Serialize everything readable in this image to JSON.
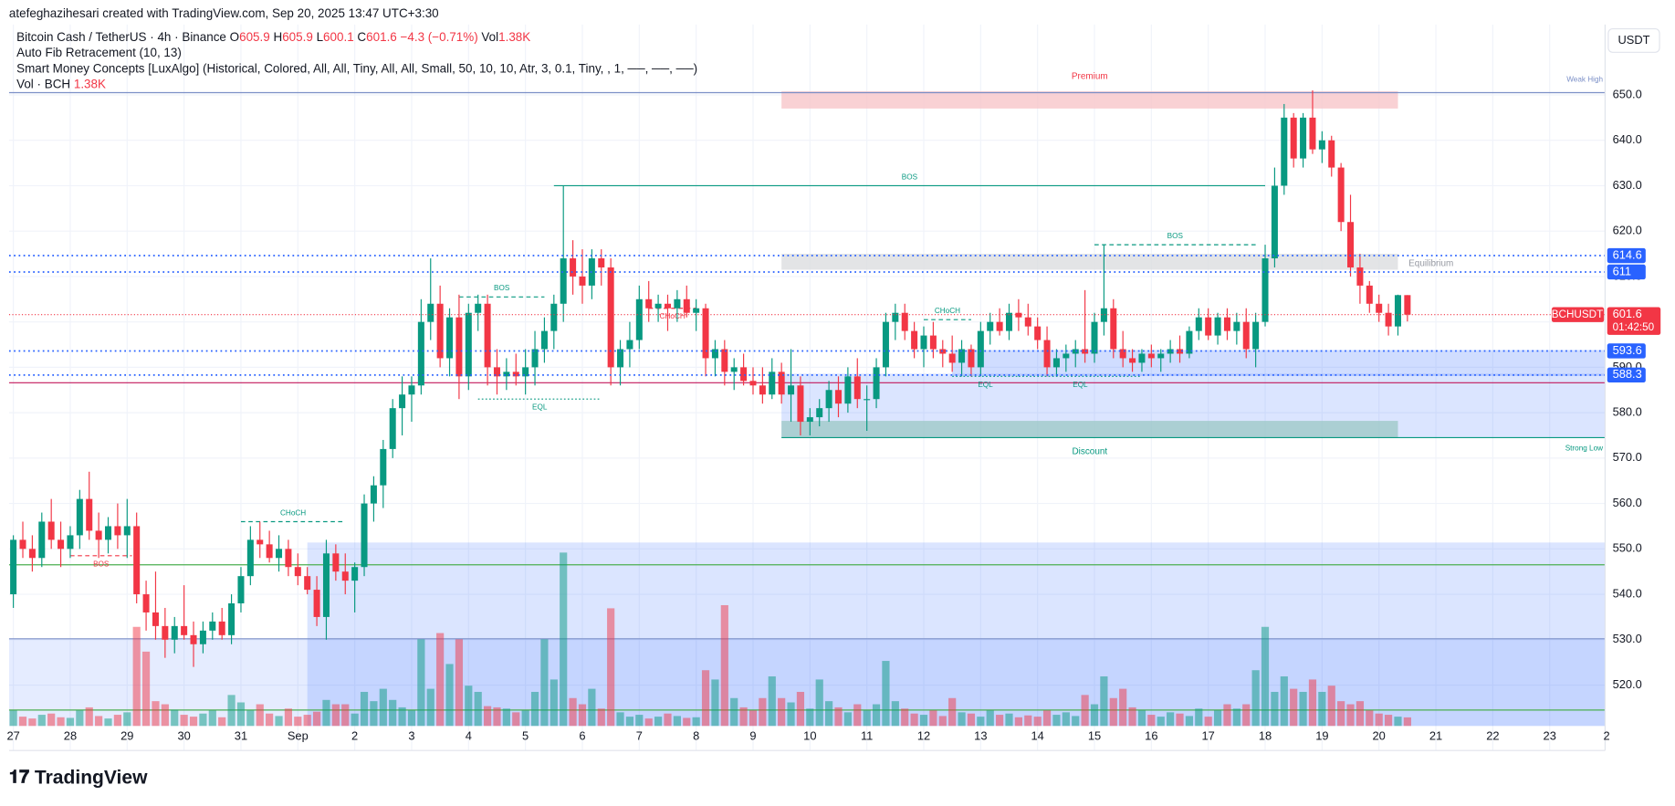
{
  "header": {
    "credit": "atefeghazihesari created with TradingView.com, Sep 20, 2025 13:47 UTC+3:30",
    "symbol": "Bitcoin Cash / TetherUS · 4h · Binance",
    "ohlc_labels": [
      "O",
      "H",
      "L",
      "C"
    ],
    "ohlc": [
      605.9,
      605.9,
      600.1,
      601.6
    ],
    "change": "−4.3 (−0.71%)",
    "vol_label": "Vol",
    "vol": "1.38K",
    "indicators": [
      "Auto Fib Retracement (10, 13)",
      "Smart Money Concepts [LuxAlgo] (Historical, Colored, All, All, Tiny, All, All, Small, 50, 10, 10, Atr, 3, 0.1, Tiny, , 1, ──, ──, ──)"
    ],
    "vol_indicator": "Vol · BCH",
    "currency": "USDT",
    "ticker": "BCHUSDT",
    "countdown": "01:42:50",
    "logo": "TradingView"
  },
  "chart_data": {
    "type": "candlestick",
    "up_color": "#089981",
    "down_color": "#f23645",
    "categories": [
      "27",
      "28",
      "29",
      "30",
      "31",
      "Sep",
      "2",
      "3",
      "4",
      "5",
      "6",
      "7",
      "8",
      "9",
      "10",
      "11",
      "12",
      "13",
      "14",
      "15",
      "16",
      "17",
      "18",
      "19",
      "20",
      "21",
      "22",
      "23",
      "2"
    ],
    "ylim": [
      511,
      665.5
    ],
    "yticks": [
      {
        "value": 520,
        "label": "520.0"
      },
      {
        "value": 530,
        "label": "530.0"
      },
      {
        "value": 540,
        "label": "540.0"
      },
      {
        "value": 550,
        "label": "550.0"
      },
      {
        "value": 560,
        "label": "560.0"
      },
      {
        "value": 570,
        "label": "570.0"
      },
      {
        "value": 580,
        "label": "580.0"
      },
      {
        "value": 590,
        "label": "590.0"
      },
      {
        "value": 600,
        "label": "600.0"
      },
      {
        "value": 610,
        "label": "610.0"
      },
      {
        "value": 620,
        "label": "620.0"
      },
      {
        "value": 630,
        "label": "630.0"
      },
      {
        "value": 640,
        "label": "640.0"
      },
      {
        "value": 650,
        "label": "650.0"
      }
    ],
    "grid": true,
    "candles": [
      [
        540,
        553,
        537,
        552
      ],
      [
        552,
        556,
        548,
        550
      ],
      [
        550,
        553,
        545,
        548
      ],
      [
        548,
        558,
        546,
        556
      ],
      [
        556,
        561,
        550,
        552
      ],
      [
        552,
        556,
        546,
        550
      ],
      [
        550,
        555,
        548,
        553
      ],
      [
        553,
        563,
        550,
        561
      ],
      [
        561,
        567,
        552,
        554
      ],
      [
        554,
        558,
        548,
        552
      ],
      [
        552,
        557,
        549,
        555
      ],
      [
        555,
        560,
        550,
        553
      ],
      [
        553,
        561,
        548,
        555
      ],
      [
        555,
        558,
        538,
        540
      ],
      [
        540,
        543,
        532,
        536
      ],
      [
        536,
        545,
        530,
        533
      ],
      [
        533,
        537,
        526,
        530
      ],
      [
        530,
        535,
        527,
        533
      ],
      [
        533,
        542,
        530,
        531
      ],
      [
        531,
        534,
        524,
        529
      ],
      [
        529,
        534,
        527,
        532
      ],
      [
        532,
        536,
        530,
        534
      ],
      [
        534,
        537,
        530,
        531
      ],
      [
        531,
        540,
        529,
        538
      ],
      [
        538,
        546,
        536,
        544
      ],
      [
        544,
        555,
        542,
        552
      ],
      [
        552,
        556,
        548,
        551
      ],
      [
        551,
        554,
        547,
        548
      ],
      [
        548,
        553,
        545,
        550
      ],
      [
        550,
        552,
        544,
        546
      ],
      [
        546,
        549,
        542,
        544
      ],
      [
        544,
        546,
        540,
        541
      ],
      [
        541,
        544,
        533,
        535
      ],
      [
        535,
        552,
        530,
        549
      ],
      [
        549,
        551,
        543,
        545
      ],
      [
        545,
        549,
        540,
        543
      ],
      [
        543,
        547,
        536,
        546
      ],
      [
        546,
        562,
        544,
        560
      ],
      [
        560,
        566,
        556,
        564
      ],
      [
        564,
        574,
        559,
        572
      ],
      [
        572,
        583,
        570,
        581
      ],
      [
        581,
        588,
        575,
        584
      ],
      [
        584,
        588,
        578,
        586
      ],
      [
        586,
        605,
        584,
        600
      ],
      [
        600,
        614,
        596,
        604
      ],
      [
        604,
        608,
        590,
        592
      ],
      [
        592,
        603,
        588,
        601
      ],
      [
        601,
        606,
        583,
        588
      ],
      [
        588,
        604,
        585,
        602
      ],
      [
        602,
        606,
        598,
        604
      ],
      [
        604,
        606,
        586,
        590
      ],
      [
        590,
        594,
        584,
        588
      ],
      [
        588,
        592,
        585,
        589
      ],
      [
        589,
        593,
        586,
        588
      ],
      [
        588,
        594,
        584,
        590
      ],
      [
        590,
        598,
        586,
        594
      ],
      [
        594,
        601,
        591,
        598
      ],
      [
        598,
        606,
        594,
        604
      ],
      [
        604,
        630,
        600,
        614
      ],
      [
        614,
        618,
        606,
        610
      ],
      [
        610,
        616,
        604,
        608
      ],
      [
        608,
        616,
        605,
        614
      ],
      [
        614,
        616,
        608,
        612
      ],
      [
        612,
        614,
        586,
        590
      ],
      [
        590,
        596,
        586,
        594
      ],
      [
        594,
        600,
        590,
        596
      ],
      [
        596,
        608,
        594,
        605
      ],
      [
        605,
        609,
        600,
        603
      ],
      [
        603,
        606,
        600,
        604
      ],
      [
        604,
        606,
        598,
        603
      ],
      [
        603,
        607,
        600,
        605
      ],
      [
        605,
        608,
        601,
        602
      ],
      [
        602,
        605,
        598,
        603
      ],
      [
        603,
        604,
        588,
        592
      ],
      [
        592,
        596,
        588,
        594
      ],
      [
        594,
        596,
        586,
        589
      ],
      [
        589,
        592,
        585,
        590
      ],
      [
        590,
        593,
        586,
        587
      ],
      [
        587,
        590,
        584,
        586
      ],
      [
        586,
        590,
        582,
        584
      ],
      [
        584,
        592,
        583,
        589
      ],
      [
        589,
        591,
        582,
        584
      ],
      [
        584,
        594,
        578,
        586
      ],
      [
        586,
        588,
        575,
        578
      ],
      [
        578,
        581,
        575,
        579
      ],
      [
        579,
        583,
        577,
        581
      ],
      [
        581,
        587,
        578,
        585
      ],
      [
        585,
        588,
        579,
        582
      ],
      [
        582,
        590,
        580,
        588
      ],
      [
        588,
        592,
        581,
        583
      ],
      [
        583,
        586,
        576,
        583
      ],
      [
        583,
        592,
        581,
        590
      ],
      [
        590,
        602,
        588,
        600
      ],
      [
        600,
        604,
        596,
        602
      ],
      [
        602,
        604,
        596,
        598
      ],
      [
        598,
        600,
        592,
        594
      ],
      [
        594,
        599,
        590,
        597
      ],
      [
        597,
        600,
        592,
        594
      ],
      [
        594,
        596,
        590,
        593
      ],
      [
        593,
        597,
        589,
        591
      ],
      [
        591,
        596,
        588,
        594
      ],
      [
        594,
        595,
        588,
        590
      ],
      [
        590,
        600,
        588,
        598
      ],
      [
        598,
        602,
        595,
        600
      ],
      [
        600,
        603,
        597,
        598
      ],
      [
        598,
        604,
        596,
        602
      ],
      [
        602,
        605,
        598,
        601
      ],
      [
        601,
        604,
        597,
        599
      ],
      [
        599,
        601,
        594,
        596
      ],
      [
        596,
        599,
        588,
        590
      ],
      [
        590,
        594,
        588,
        592
      ],
      [
        592,
        595,
        589,
        593
      ],
      [
        593,
        596,
        590,
        594
      ],
      [
        594,
        607,
        591,
        593
      ],
      [
        593,
        602,
        591,
        600
      ],
      [
        600,
        617,
        597,
        603
      ],
      [
        603,
        605,
        592,
        594
      ],
      [
        594,
        598,
        590,
        592
      ],
      [
        592,
        594,
        589,
        591
      ],
      [
        591,
        594,
        589,
        593
      ],
      [
        593,
        595,
        590,
        592
      ],
      [
        592,
        594,
        589,
        593
      ],
      [
        593,
        596,
        591,
        594
      ],
      [
        594,
        597,
        591,
        593
      ],
      [
        593,
        599,
        592,
        598
      ],
      [
        598,
        603,
        596,
        601
      ],
      [
        601,
        603,
        596,
        597
      ],
      [
        597,
        602,
        595,
        601
      ],
      [
        601,
        603,
        596,
        598
      ],
      [
        598,
        602,
        595,
        600
      ],
      [
        600,
        603,
        592,
        594
      ],
      [
        594,
        602,
        590,
        600
      ],
      [
        600,
        617,
        599,
        614
      ],
      [
        614,
        634,
        612,
        630
      ],
      [
        630,
        648,
        628,
        645
      ],
      [
        645,
        646,
        634,
        636
      ],
      [
        636,
        646,
        634,
        645
      ],
      [
        645,
        651,
        637,
        638
      ],
      [
        638,
        642,
        635,
        640
      ],
      [
        640,
        641,
        632,
        634
      ],
      [
        634,
        635,
        620,
        622
      ],
      [
        622,
        628,
        610,
        612
      ],
      [
        612,
        615,
        604,
        608
      ],
      [
        608,
        609,
        602,
        604
      ],
      [
        604,
        606,
        600,
        602
      ],
      [
        602,
        604,
        597,
        599
      ],
      [
        599,
        606,
        597,
        605.9
      ],
      [
        605.9,
        605.9,
        600.1,
        601.6
      ]
    ],
    "volume": [
      2.5,
      1.5,
      1.2,
      1.8,
      2.0,
      1.4,
      1.3,
      2.5,
      3.0,
      1.6,
      1.2,
      1.8,
      2.2,
      16,
      12,
      4,
      3.5,
      2.6,
      1.8,
      1.5,
      2.0,
      2.5,
      1.4,
      5,
      3.8,
      2.5,
      3.5,
      2.0,
      1.6,
      2.8,
      1.5,
      1.8,
      2.3,
      4.2,
      3.5,
      3.5,
      2.0,
      5.5,
      4.0,
      6.0,
      4.2,
      3.0,
      2.5,
      14,
      6.0,
      15,
      10,
      14,
      6.5,
      5.5,
      3.2,
      3.0,
      2.8,
      2.2,
      2.5,
      5.5,
      14,
      7.5,
      28,
      4.5,
      3.5,
      6.0,
      2.8,
      19,
      2.2,
      1.5,
      1.8,
      1.2,
      1.5,
      2.0,
      1.6,
      1.3,
      1.4,
      9,
      7.5,
      19.5,
      4.5,
      3.0,
      2.5,
      4.5,
      8.0,
      4.5,
      3.8,
      5.5,
      2.8,
      7.5,
      4.0,
      3.0,
      2.2,
      3.5,
      2.5,
      3.5,
      10.5,
      4.0,
      2.8,
      2.0,
      1.8,
      2.5,
      1.6,
      4.5,
      2.2,
      2.0,
      1.5,
      2.5,
      1.8,
      2.0,
      1.4,
      1.7,
      1.5,
      2.5,
      1.8,
      2.2,
      1.6,
      5.0,
      3.5,
      8.0,
      4.5,
      6.0,
      3.0,
      2.5,
      1.8,
      1.5,
      2.2,
      2.0,
      1.6,
      2.8,
      1.5,
      2.5,
      3.5,
      2.8,
      3.5,
      9.0,
      16,
      5.5,
      8,
      6.0,
      5.5,
      7.5,
      5.5,
      6.5,
      4.0,
      3.5,
      4.0,
      2.5,
      2.0,
      1.8,
      1.5,
      1.38
    ],
    "zones": [
      {
        "label": "Premium",
        "top": 650.8,
        "bottom": 647,
        "from": 81,
        "to": 146,
        "color": "#f7c6c9"
      },
      {
        "label": "Equilibrium",
        "top": 615,
        "bottom": 611.5,
        "from": 81,
        "to": 146,
        "color": "#dcdde0"
      },
      {
        "label": "Discount",
        "top": 578.2,
        "bottom": 574.5,
        "from": 81,
        "to": 146,
        "color": "#9fc9c8"
      }
    ],
    "order_blocks": [
      {
        "top": 551.4,
        "bottom": 511,
        "from": 31,
        "color": "rgba(41,98,255,0.17)"
      },
      {
        "top": 530.2,
        "bottom": 511,
        "from": -0.5,
        "color": "rgba(41,98,255,0.12)"
      },
      {
        "top": 588.6,
        "bottom": 574.5,
        "from": 81,
        "color": "rgba(41,98,255,0.17)"
      },
      {
        "top": 593.8,
        "bottom": 588.1,
        "from": 99,
        "color": "rgba(41,98,255,0.22)"
      }
    ],
    "lines": [
      {
        "label": "Weak High",
        "price": 650.5,
        "color": "#7b8fc7"
      },
      {
        "label": "Strong Low",
        "price": 574.5,
        "color": "#089981",
        "from": 81
      },
      {
        "price": 586.6,
        "color": "#c2185b"
      },
      {
        "price": 546.5,
        "color": "#4caf50"
      },
      {
        "price": 514.5,
        "color": "#4caf50"
      },
      {
        "price": 530.2,
        "color": "#7b8fc7"
      }
    ],
    "levels": [
      614.6,
      611.0,
      593.6,
      588.3
    ],
    "level_color": "#2962ff",
    "structures": [
      {
        "label": "BOS",
        "price": 548.5,
        "from": 6,
        "to": 12.5,
        "color": "#f23645",
        "style": "dash",
        "below": true
      },
      {
        "label": "CHoCH",
        "price": 556,
        "from": 24,
        "to": 35,
        "color": "#089981",
        "style": "dash"
      },
      {
        "label": "BOS",
        "price": 605.5,
        "from": 47,
        "to": 56,
        "color": "#089981",
        "style": "dash"
      },
      {
        "label": "EQL",
        "price": 583,
        "from": 49,
        "to": 62,
        "color": "#089981",
        "style": "dot",
        "below": true
      },
      {
        "label": "BOS",
        "price": 630,
        "from": 57,
        "to": 132,
        "color": "#089981",
        "style": "solid"
      },
      {
        "label": "CHoCH",
        "price": 603,
        "from": 67,
        "to": 72,
        "color": "#f23645",
        "style": "dash",
        "below": true
      },
      {
        "label": "CHoCH",
        "price": 600.5,
        "from": 96,
        "to": 101,
        "color": "#089981",
        "style": "dash"
      },
      {
        "label": "EQL",
        "price": 588,
        "from": 99,
        "to": 106,
        "color": "#089981",
        "style": "dot",
        "below": true
      },
      {
        "label": "EQL",
        "price": 588,
        "from": 106,
        "to": 119,
        "color": "#089981",
        "style": "dot",
        "below": true
      },
      {
        "label": "BOS",
        "price": 617,
        "from": 114,
        "to": 131,
        "color": "#089981",
        "style": "dash"
      }
    ]
  }
}
